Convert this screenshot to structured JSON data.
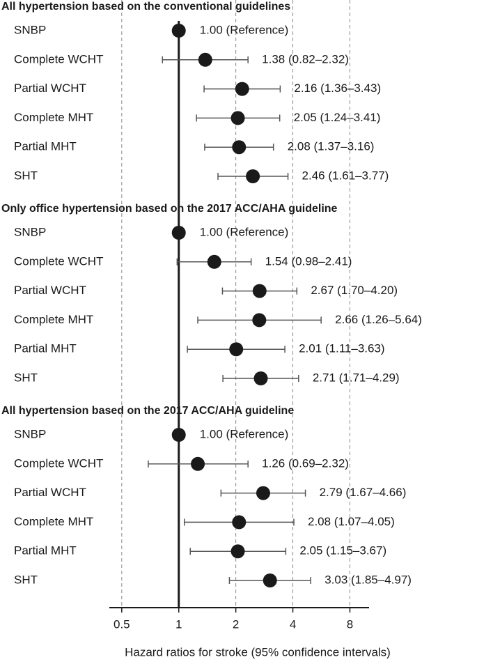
{
  "chart_data": {
    "type": "forest",
    "xlabel": "Hazard ratios for stroke (95% confidence intervals)",
    "xlim": [
      0.43,
      10.1
    ],
    "xticks": [
      0.5,
      1,
      2,
      4,
      8
    ],
    "log_x": true,
    "grid": true,
    "reference": 1,
    "color": "#1a1a1a",
    "ci_color": "#555555",
    "panels": [
      {
        "title": "All hypertension based on the conventional guidelines",
        "categories": [
          "SNBP",
          "Complete WCHT",
          "Partial WCHT",
          "Complete MHT",
          "Partial MHT",
          "SHT"
        ],
        "values": [
          1.0,
          1.38,
          2.16,
          2.05,
          2.08,
          2.46
        ],
        "lower": [
          null,
          0.82,
          1.36,
          1.24,
          1.37,
          1.61
        ],
        "upper": [
          null,
          2.32,
          3.43,
          3.41,
          3.16,
          3.77
        ],
        "value_labels": [
          "1.00 (Reference)",
          "1.38 (0.82–2.32)",
          "2.16 (1.36–3.43)",
          "2.05 (1.24–3.41)",
          "2.08 (1.37–3.16)",
          "2.46 (1.61–3.77)"
        ]
      },
      {
        "title": "Only office hypertension based on the 2017 ACC/AHA guideline",
        "categories": [
          "SNBP",
          "Complete WCHT",
          "Partial WCHT",
          "Complete MHT",
          "Partial MHT",
          "SHT"
        ],
        "values": [
          1.0,
          1.54,
          2.67,
          2.66,
          2.01,
          2.71
        ],
        "lower": [
          null,
          0.98,
          1.7,
          1.26,
          1.11,
          1.71
        ],
        "upper": [
          null,
          2.41,
          4.2,
          5.64,
          3.63,
          4.29
        ],
        "value_labels": [
          "1.00 (Reference)",
          "1.54 (0.98–2.41)",
          "2.67 (1.70–4.20)",
          "2.66 (1.26–5.64)",
          "2.01 (1.11–3.63)",
          "2.71 (1.71–4.29)"
        ]
      },
      {
        "title": "All hypertension based on the 2017 ACC/AHA guideline",
        "categories": [
          "SNBP",
          "Complete WCHT",
          "Partial WCHT",
          "Complete MHT",
          "Partial MHT",
          "SHT"
        ],
        "values": [
          1.0,
          1.26,
          2.79,
          2.08,
          2.05,
          3.03
        ],
        "lower": [
          null,
          0.69,
          1.67,
          1.07,
          1.15,
          1.85
        ],
        "upper": [
          null,
          2.32,
          4.66,
          4.05,
          3.67,
          4.97
        ],
        "value_labels": [
          "1.00 (Reference)",
          "1.26 (0.69–2.32)",
          "2.79 (1.67–4.66)",
          "2.08 (1.07–4.05)",
          "2.05 (1.15–3.67)",
          "3.03 (1.85–4.97)"
        ]
      }
    ]
  }
}
